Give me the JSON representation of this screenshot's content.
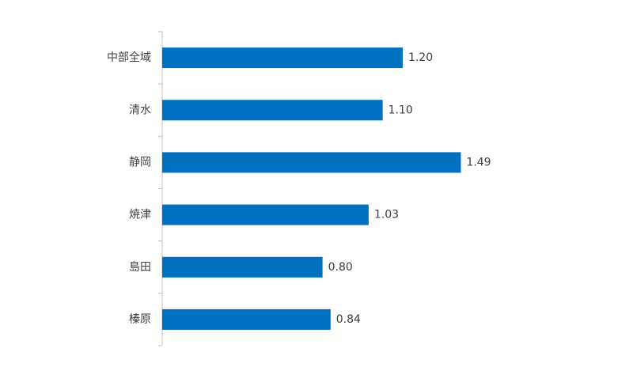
{
  "chart_data": {
    "type": "bar",
    "orientation": "horizontal",
    "categories": [
      "中部全域",
      "清水",
      "静岡",
      "焼津",
      "島田",
      "榛原"
    ],
    "values": [
      1.2,
      1.1,
      1.49,
      1.03,
      0.8,
      0.84
    ],
    "value_labels": [
      "1.20",
      "1.10",
      "1.49",
      "1.03",
      "0.80",
      "0.84"
    ],
    "color": "#0070c0"
  }
}
